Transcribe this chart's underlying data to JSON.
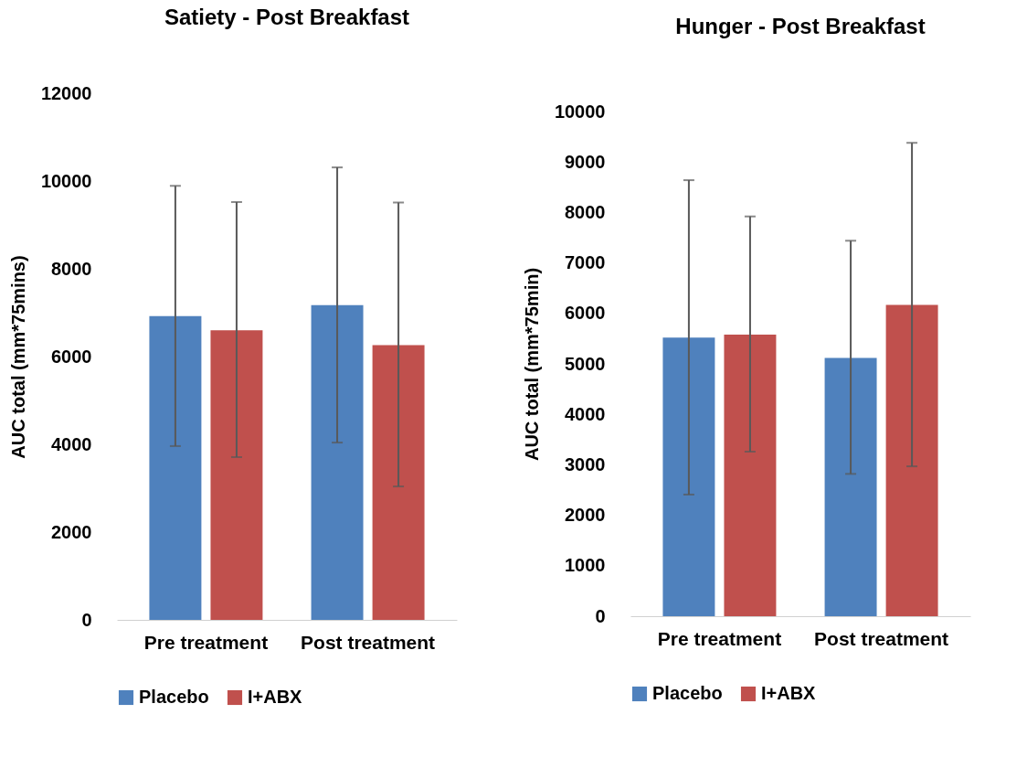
{
  "chart_data": [
    {
      "type": "bar",
      "title": "Satiety - Post Breakfast",
      "ylabel": "AUC total (mm*75mins)",
      "categories": [
        "Pre treatment",
        "Post treatment"
      ],
      "ylim": [
        0,
        12000
      ],
      "yticks": [
        0,
        2000,
        4000,
        6000,
        8000,
        10000,
        12000
      ],
      "grid": false,
      "legend": "bottom",
      "series": [
        {
          "name": "Placebo",
          "color": "#4f81bd",
          "values": [
            6920,
            7170
          ],
          "errors": [
            [
              3960,
              9890
            ],
            [
              4040,
              10310
            ]
          ]
        },
        {
          "name": "I+ABX",
          "color": "#c0504d",
          "values": [
            6600,
            6260
          ],
          "errors": [
            [
              3710,
              9520
            ],
            [
              3040,
              9510
            ]
          ]
        }
      ]
    },
    {
      "type": "bar",
      "title": "Hunger - Post Breakfast",
      "ylabel": "AUC total (mm*75min)",
      "categories": [
        "Pre treatment",
        "Post treatment"
      ],
      "ylim": [
        0,
        10000
      ],
      "yticks": [
        0,
        1000,
        2000,
        3000,
        4000,
        5000,
        6000,
        7000,
        8000,
        9000,
        10000
      ],
      "grid": false,
      "legend": "bottom",
      "series": [
        {
          "name": "Placebo",
          "color": "#4f81bd",
          "values": [
            5520,
            5120
          ],
          "errors": [
            [
              2410,
              8640
            ],
            [
              2820,
              7440
            ]
          ]
        },
        {
          "name": "I+ABX",
          "color": "#c0504d",
          "values": [
            5580,
            6170
          ],
          "errors": [
            [
              3260,
              7920
            ],
            [
              2970,
              9380
            ]
          ]
        }
      ]
    }
  ]
}
